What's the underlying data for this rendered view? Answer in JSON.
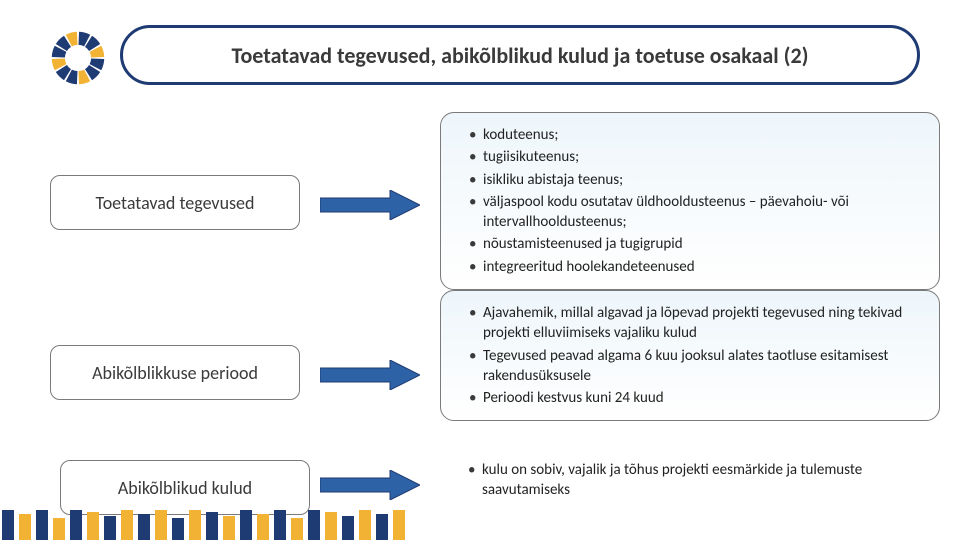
{
  "title": {
    "text": "Toetatavad tegevused, abikõlblikud kulud ja toetuse osakaal (2)",
    "border_color": "#1f3b73",
    "text_color": "#3a3a3a",
    "fontsize": 22,
    "fontweight": "bold"
  },
  "logo": {
    "colors": [
      "#1f3b73",
      "#1f3b73",
      "#f2b233",
      "#1f3b73",
      "#1f3b73",
      "#f2b233",
      "#1f3b73",
      "#1f3b73",
      "#f2b233",
      "#1f3b73",
      "#1f3b73",
      "#f2b233"
    ],
    "segment_count": 12,
    "inner_radius": 14,
    "outer_radius": 28
  },
  "arrow": {
    "fill": "#2e62a6",
    "stroke": "#1f3b73"
  },
  "rows": [
    {
      "label": "Toetatavad tegevused",
      "items": [
        "koduteenus;",
        "tugiisikuteenus;",
        "isikliku abistaja teenus;",
        "väljaspool kodu osutatav üldhooldusteenus – päevahoiu- või intervallhooldusteenus;",
        "nõustamisteenused ja tugigrupid",
        "integreeritud hoolekandeteenused"
      ],
      "boxed": true
    },
    {
      "label": "Abikõlblikkuse periood",
      "items": [
        "Ajavahemik, millal algavad ja lõpevad projekti tegevused ning tekivad projekti elluviimiseks vajaliku kulud",
        "Tegevused peavad algama 6 kuu jooksul alates taotluse esitamisest rakendusüksusele",
        "Perioodi kestvus kuni 24 kuud"
      ],
      "boxed": true
    },
    {
      "label": "Abikõlblikud kulud",
      "items": [
        "kulu on sobiv, vajalik ja tõhus projekti eesmärkide ja tulemuste saavutamiseks"
      ],
      "boxed": false
    }
  ],
  "content_box": {
    "gradient_top": "#eef6fb",
    "gradient_bottom": "#ffffff",
    "border_color": "#7a7a7a",
    "fontsize": 15,
    "text_color": "#222222"
  },
  "label_box": {
    "border_color": "#7a7a7a",
    "fontsize": 18,
    "text_color": "#3a3a3a"
  },
  "footer_stripes": {
    "pattern": [
      "#1f3b73",
      "#f2b233",
      "#1f3b73",
      "#f2b233",
      "#1f3b73",
      "#f2b233",
      "#1f3b73",
      "#f2b233",
      "#1f3b73",
      "#f2b233",
      "#1f3b73",
      "#f2b233",
      "#1f3b73",
      "#f2b233",
      "#1f3b73",
      "#f2b233",
      "#1f3b73",
      "#f2b233",
      "#1f3b73",
      "#f2b233",
      "#1f3b73",
      "#f2b233",
      "#1f3b73",
      "#f2b233"
    ],
    "heights": [
      30,
      26,
      30,
      22,
      30,
      28,
      24,
      30,
      26,
      30,
      22,
      30,
      28,
      24,
      30,
      26,
      30,
      22,
      30,
      28,
      24,
      30,
      26,
      30
    ]
  }
}
